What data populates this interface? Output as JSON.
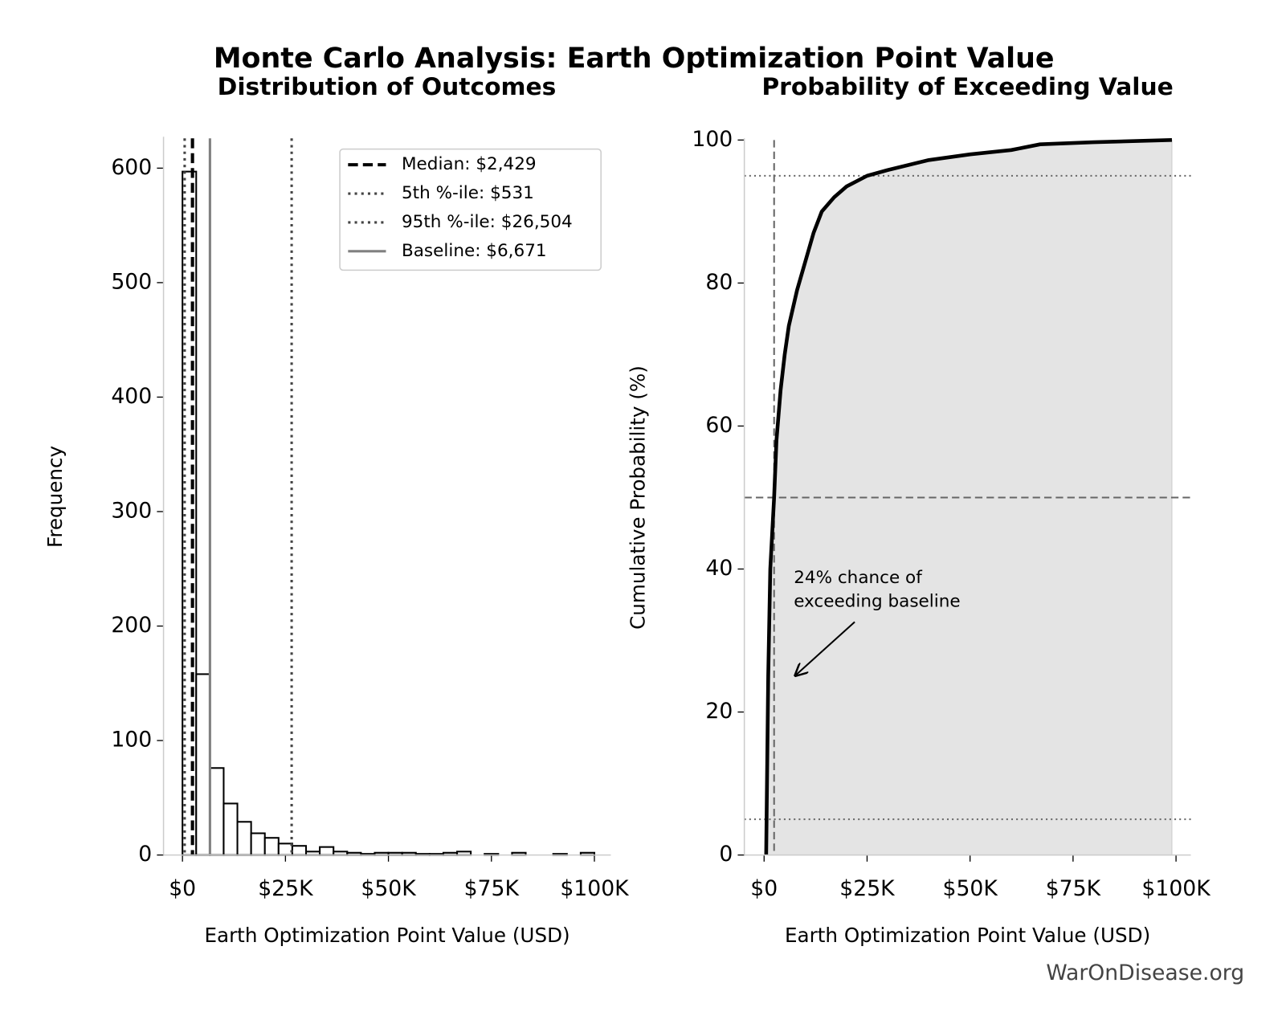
{
  "title": "Monte Carlo Analysis: Earth Optimization Point Value",
  "watermark": "WarOnDisease.org",
  "chart_data": [
    {
      "type": "histogram",
      "title": "Distribution of Outcomes",
      "xlabel": "Earth Optimization Point Value (USD)",
      "ylabel": "Frequency",
      "bins": [
        0,
        3333,
        6667,
        10000,
        13333,
        16667,
        20000,
        23333,
        26667,
        30000,
        33333,
        36667,
        40000,
        43333,
        46667,
        50000,
        53333,
        56667,
        60000,
        63333,
        66667,
        70000,
        73333,
        76667,
        80000,
        83333,
        86667,
        90000,
        93333,
        96667,
        100000
      ],
      "values": [
        597,
        158,
        76,
        45,
        29,
        19,
        15,
        10,
        8,
        3,
        7,
        3,
        2,
        1,
        2,
        2,
        2,
        1,
        1,
        2,
        3,
        0,
        1,
        0,
        2,
        0,
        0,
        1,
        0,
        2
      ],
      "color": "#ffffff",
      "edgecolor": "#000000",
      "xlim": [
        -4600,
        104000
      ],
      "ylim": [
        0,
        626
      ],
      "xticks": [
        {
          "value": 0,
          "label": "$0"
        },
        {
          "value": 25000,
          "label": "$25K"
        },
        {
          "value": 50000,
          "label": "$50K"
        },
        {
          "value": 75000,
          "label": "$75K"
        },
        {
          "value": 100000,
          "label": "$100K"
        }
      ],
      "yticks": [
        0,
        100,
        200,
        300,
        400,
        500,
        600
      ],
      "legend": "upper right",
      "vlines": [
        {
          "label": "Median: $2,429",
          "value": 2429,
          "color": "#000000",
          "style": "dashed"
        },
        {
          "label": "5th %-ile: $531",
          "value": 531,
          "color": "#444444",
          "style": "dotted"
        },
        {
          "label": "95th %-ile: $26,504",
          "value": 26504,
          "color": "#444444",
          "style": "dotted"
        },
        {
          "label": "Baseline: $6,671",
          "value": 6671,
          "color": "#808080",
          "style": "solid"
        }
      ]
    },
    {
      "type": "area",
      "title": "Probability of Exceeding Value",
      "xlabel": "Earth Optimization Point Value (USD)",
      "ylabel": "Cumulative Probability (%)",
      "x": [
        500,
        700,
        1000,
        1500,
        2429,
        3000,
        4000,
        5000,
        6000,
        8000,
        10000,
        12000,
        14000,
        17000,
        20000,
        25000,
        30000,
        35000,
        40000,
        50000,
        60000,
        67000,
        80000,
        99000
      ],
      "values": [
        0,
        10,
        25,
        40,
        50,
        58,
        65,
        70,
        74,
        79,
        83,
        87,
        90,
        92,
        93.5,
        95,
        95.8,
        96.5,
        97.2,
        98,
        98.6,
        99.4,
        99.7,
        100
      ],
      "color": "#000000",
      "fill": "#e4e4e4",
      "xlim": [
        -4800,
        103600
      ],
      "ylim": [
        0,
        100
      ],
      "xticks": [
        {
          "value": 0,
          "label": "$0"
        },
        {
          "value": 25000,
          "label": "$25K"
        },
        {
          "value": 50000,
          "label": "$50K"
        },
        {
          "value": 75000,
          "label": "$75K"
        },
        {
          "value": 100000,
          "label": "$100K"
        }
      ],
      "yticks": [
        0,
        20,
        40,
        60,
        80,
        100
      ],
      "hlines": [
        {
          "value": 50,
          "color": "#666666",
          "style": "dashed"
        },
        {
          "value": 95,
          "color": "#666666",
          "style": "dotted"
        },
        {
          "value": 5,
          "color": "#666666",
          "style": "dotted"
        }
      ],
      "vlines": [
        {
          "value": 2429,
          "color": "#666666",
          "style": "dashed"
        }
      ],
      "annotation": [
        "24% chance of",
        "exceeding baseline"
      ]
    }
  ]
}
